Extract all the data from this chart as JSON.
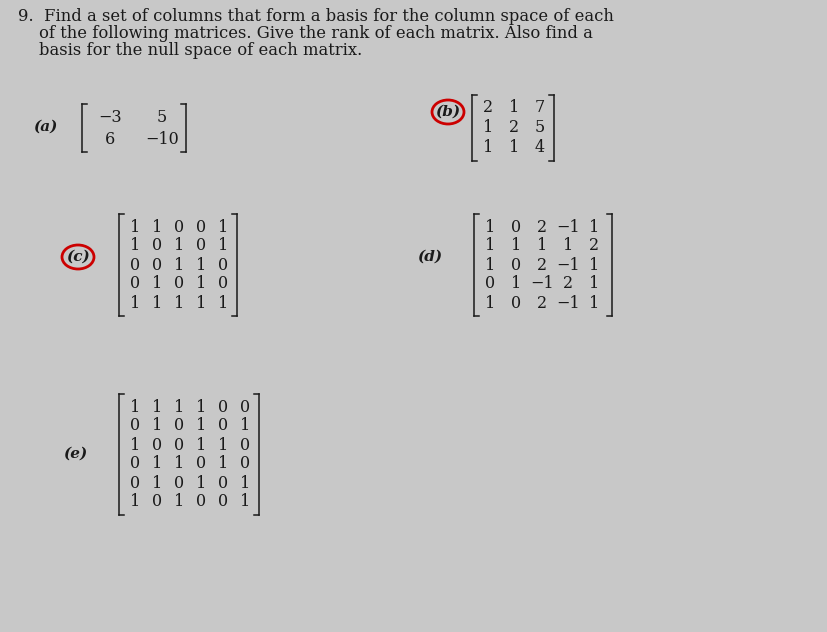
{
  "background_color": "#c8c8c8",
  "text_color": "#1a1a1a",
  "circle_color": "#cc0000",
  "title_lines": [
    "9.  Find a set of columns that form a basis for the column space of each",
    "    of the following matrices. Give the rank of each matrix. Also find a",
    "    basis for the null space of each matrix."
  ],
  "matrix_a": [
    [
      -3,
      5
    ],
    [
      6,
      -10
    ]
  ],
  "matrix_b": [
    [
      2,
      1,
      7
    ],
    [
      1,
      2,
      5
    ],
    [
      1,
      1,
      4
    ]
  ],
  "matrix_c": [
    [
      1,
      1,
      0,
      0,
      1
    ],
    [
      1,
      0,
      1,
      0,
      1
    ],
    [
      0,
      0,
      1,
      1,
      0
    ],
    [
      0,
      1,
      0,
      1,
      0
    ],
    [
      1,
      1,
      1,
      1,
      1
    ]
  ],
  "matrix_d": [
    [
      1,
      0,
      2,
      -1,
      1
    ],
    [
      1,
      1,
      1,
      1,
      2
    ],
    [
      1,
      0,
      2,
      -1,
      1
    ],
    [
      0,
      1,
      -1,
      2,
      1
    ],
    [
      1,
      0,
      2,
      -1,
      1
    ]
  ],
  "matrix_e": [
    [
      1,
      1,
      1,
      1,
      0,
      0
    ],
    [
      0,
      1,
      0,
      1,
      0,
      1
    ],
    [
      1,
      0,
      0,
      1,
      1,
      0
    ],
    [
      0,
      1,
      1,
      0,
      1,
      0
    ],
    [
      0,
      1,
      0,
      1,
      0,
      1
    ],
    [
      1,
      0,
      1,
      0,
      0,
      1
    ]
  ],
  "fs_title": 11.8,
  "fs_mat": 11.5,
  "fs_label": 11.0
}
